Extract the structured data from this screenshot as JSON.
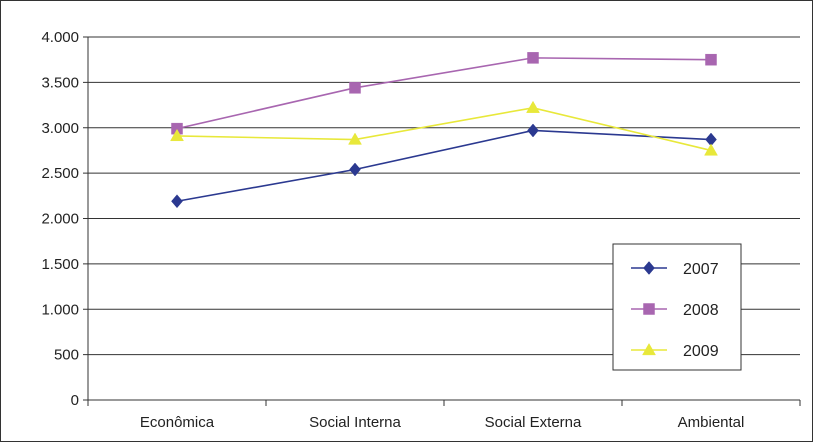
{
  "chart_data": {
    "type": "line",
    "title": "",
    "xlabel": "",
    "ylabel": "",
    "categories": [
      "Econômica",
      "Social Interna",
      "Social Externa",
      "Ambiental"
    ],
    "ylim": [
      0,
      4000
    ],
    "yticks": [
      0,
      500,
      1000,
      1500,
      2000,
      2500,
      3000,
      3500,
      4000
    ],
    "ytick_labels": [
      "0",
      "500",
      "1.000",
      "1.500",
      "2.000",
      "2.500",
      "3.000",
      "3.500",
      "4.000"
    ],
    "grid": true,
    "legend_position": "bottom-right",
    "series": [
      {
        "name": "2007",
        "values": [
          2190,
          2540,
          2970,
          2870
        ],
        "color": "#2b3990",
        "marker": "diamond"
      },
      {
        "name": "2008",
        "values": [
          2990,
          3440,
          3770,
          3750
        ],
        "color": "#a866b0",
        "marker": "square"
      },
      {
        "name": "2009",
        "values": [
          2910,
          2870,
          3220,
          2750
        ],
        "color": "#e8e83a",
        "marker": "triangle"
      }
    ]
  }
}
